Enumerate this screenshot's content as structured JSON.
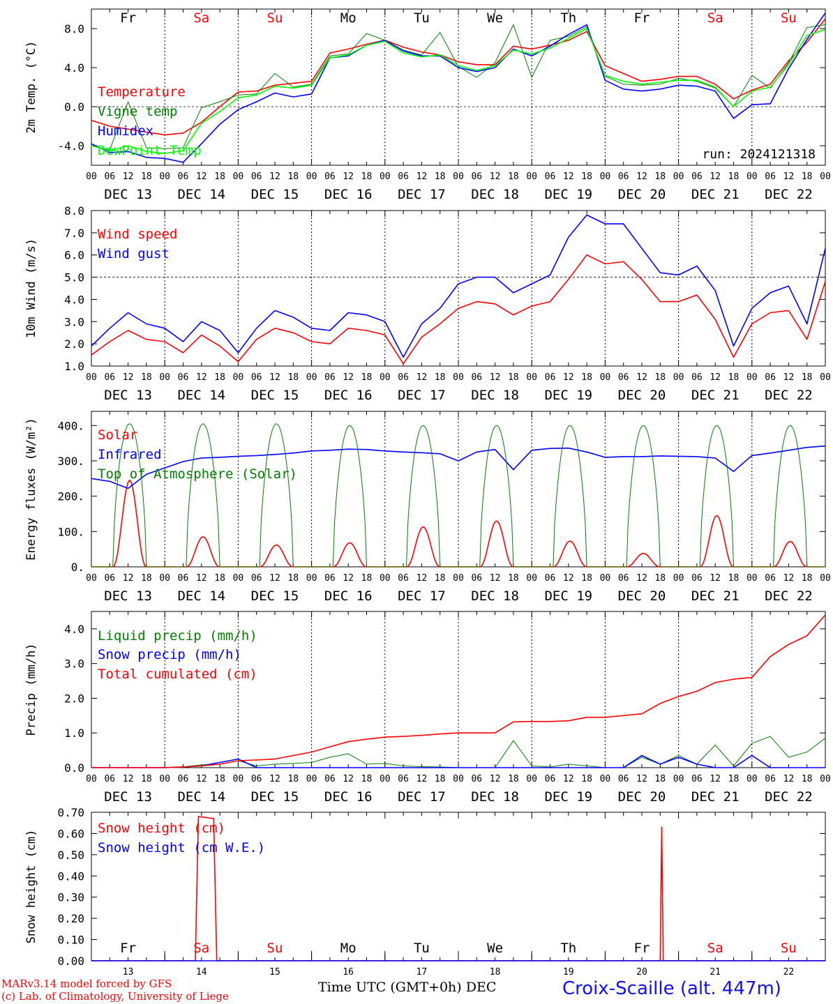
{
  "colors": {
    "red": "#ff0000",
    "green": "#008000",
    "blue": "#0000ff",
    "lime": "#00ff00",
    "station": "#1010ff"
  },
  "time_axis": {
    "hour_ticks": [
      "00",
      "06",
      "12",
      "18"
    ],
    "end_tick": "00",
    "dates": [
      "DEC 13",
      "DEC 14",
      "DEC 15",
      "DEC 16",
      "DEC 17",
      "DEC 18",
      "DEC 19",
      "DEC 20",
      "DEC 21",
      "DEC 22"
    ],
    "weekdays": [
      "Fr",
      "Sa",
      "Su",
      "Mo",
      "Tu",
      "We",
      "Th",
      "Fr",
      "Sa",
      "Su"
    ],
    "weekend": [
      false,
      true,
      true,
      false,
      false,
      false,
      false,
      false,
      true,
      true
    ],
    "day_numbers": [
      "13",
      "14",
      "15",
      "16",
      "17",
      "18",
      "19",
      "20",
      "21",
      "22"
    ]
  },
  "footer": {
    "credit_line1": "MARv3.14 model forced by GFS",
    "credit_line2": "(c) Lab. of Climatology, University of Liege",
    "xlabel": "Time UTC (GMT+0h)",
    "month": "DEC",
    "station": "Croix-Scaille (alt. 447m)"
  },
  "chart_data": [
    {
      "type": "line",
      "ylabel": "2m Temp. (°C)",
      "ylim": [
        -6.0,
        10.0
      ],
      "yticks": [
        -4.0,
        0.0,
        4.0,
        8.0
      ],
      "ytick_labels": [
        "-4.0",
        "0.0",
        "4.0",
        "8.0"
      ],
      "ref_line": 0.0,
      "annotation": "run: 2024121318",
      "x_unit": "hours since DEC 13 00 UTC",
      "series": [
        {
          "name": "Temperature",
          "color": "red",
          "x": [
            0,
            6,
            12,
            18,
            24,
            30,
            36,
            42,
            48,
            54,
            60,
            66,
            72,
            78,
            84,
            90,
            96,
            102,
            108,
            114,
            120,
            126,
            132,
            138,
            144,
            150,
            156,
            162,
            168,
            174,
            180,
            186,
            192,
            198,
            204,
            210,
            216,
            222,
            228,
            234,
            240
          ],
          "y": [
            -1.4,
            -2.0,
            -2.3,
            -2.6,
            -2.9,
            -2.7,
            -1.6,
            0.0,
            1.5,
            1.6,
            2.2,
            2.4,
            2.6,
            5.5,
            5.9,
            6.4,
            6.8,
            6.1,
            5.6,
            5.3,
            4.6,
            4.3,
            4.3,
            6.2,
            5.9,
            6.3,
            6.8,
            7.7,
            4.2,
            3.4,
            2.6,
            2.8,
            3.1,
            3.1,
            2.3,
            0.8,
            1.7,
            2.3,
            4.7,
            6.6,
            9.0
          ]
        },
        {
          "name": "Vigne temp",
          "color": "green",
          "x": [
            0,
            6,
            12,
            18,
            24,
            30,
            36,
            42,
            48,
            54,
            60,
            66,
            72,
            78,
            84,
            90,
            96,
            102,
            108,
            114,
            120,
            126,
            132,
            138,
            144,
            150,
            156,
            162,
            168,
            174,
            180,
            186,
            192,
            198,
            204,
            210,
            216,
            222,
            228,
            234,
            240
          ],
          "y": [
            -4.0,
            -4.4,
            0.5,
            -4.2,
            -4.3,
            -4.2,
            -0.1,
            0.5,
            1.2,
            1.3,
            3.4,
            2.0,
            2.3,
            5.2,
            5.4,
            7.5,
            6.8,
            5.8,
            5.3,
            7.6,
            4.1,
            3.0,
            4.5,
            8.4,
            3.0,
            6.8,
            7.2,
            8.2,
            3.1,
            2.3,
            2.2,
            2.3,
            2.9,
            2.6,
            1.9,
            0.0,
            3.2,
            1.9,
            4.5,
            8.1,
            8.4
          ]
        },
        {
          "name": "Humidex",
          "color": "blue",
          "x": [
            0,
            6,
            12,
            18,
            24,
            30,
            36,
            42,
            48,
            54,
            60,
            66,
            72,
            78,
            84,
            90,
            96,
            102,
            108,
            114,
            120,
            126,
            132,
            138,
            144,
            150,
            156,
            162,
            168,
            174,
            180,
            186,
            192,
            198,
            204,
            210,
            216,
            222,
            228,
            234,
            240
          ],
          "y": [
            -3.8,
            -4.7,
            -4.6,
            -5.2,
            -5.3,
            -5.7,
            -3.8,
            -1.8,
            -0.3,
            0.5,
            1.4,
            1.0,
            1.3,
            5.0,
            5.2,
            6.3,
            6.8,
            5.7,
            5.2,
            5.2,
            4.0,
            3.6,
            4.0,
            5.9,
            5.2,
            6.2,
            7.4,
            8.4,
            2.7,
            1.8,
            1.6,
            1.8,
            2.2,
            2.1,
            1.6,
            -1.2,
            0.2,
            0.3,
            3.9,
            6.9,
            9.6
          ]
        },
        {
          "name": "DewPoint Temp",
          "color": "lime",
          "x": [
            0,
            6,
            12,
            18,
            24,
            30,
            36,
            42,
            48,
            54,
            60,
            66,
            72,
            78,
            84,
            90,
            96,
            102,
            108,
            114,
            120,
            126,
            132,
            138,
            144,
            150,
            156,
            162,
            168,
            174,
            180,
            186,
            192,
            198,
            204,
            210,
            216,
            222,
            228,
            234,
            240
          ],
          "y": [
            -4.0,
            -4.5,
            -4.0,
            -4.6,
            -4.8,
            -4.5,
            -1.7,
            -0.5,
            0.9,
            1.2,
            2.1,
            1.9,
            2.2,
            5.0,
            5.3,
            6.3,
            6.7,
            5.5,
            5.1,
            5.3,
            4.2,
            3.7,
            4.2,
            5.8,
            5.4,
            6.0,
            7.0,
            8.0,
            3.2,
            2.6,
            2.3,
            2.5,
            2.7,
            2.7,
            2.0,
            0.0,
            1.6,
            2.0,
            4.3,
            7.3,
            7.9
          ]
        }
      ]
    },
    {
      "type": "line",
      "ylabel": "10m Wind (m/s)",
      "ylim": [
        1.0,
        8.0
      ],
      "yticks": [
        1.0,
        2.0,
        3.0,
        4.0,
        5.0,
        6.0,
        7.0,
        8.0
      ],
      "ytick_labels": [
        "1.0",
        "2.0",
        "3.0",
        "4.0",
        "5.0",
        "6.0",
        "7.0",
        "8.0"
      ],
      "ref_line": 5.0,
      "x_unit": "hours since DEC 13 00 UTC",
      "series": [
        {
          "name": "Wind speed",
          "color": "red",
          "x": [
            0,
            6,
            12,
            18,
            24,
            30,
            36,
            42,
            48,
            54,
            60,
            66,
            72,
            78,
            84,
            90,
            96,
            102,
            108,
            114,
            120,
            126,
            132,
            138,
            144,
            150,
            156,
            162,
            168,
            174,
            180,
            186,
            192,
            198,
            204,
            210,
            216,
            222,
            228,
            234,
            240
          ],
          "y": [
            1.5,
            2.1,
            2.6,
            2.2,
            2.1,
            1.6,
            2.4,
            1.9,
            1.2,
            2.2,
            2.7,
            2.5,
            2.1,
            2.0,
            2.7,
            2.6,
            2.4,
            1.1,
            2.3,
            2.9,
            3.6,
            3.9,
            3.8,
            3.3,
            3.7,
            3.9,
            4.9,
            6.0,
            5.6,
            5.7,
            4.9,
            3.9,
            3.9,
            4.2,
            3.1,
            1.4,
            2.9,
            3.4,
            3.5,
            2.2,
            4.8
          ]
        },
        {
          "name": "Wind gust",
          "color": "blue",
          "x": [
            0,
            6,
            12,
            18,
            24,
            30,
            36,
            42,
            48,
            54,
            60,
            66,
            72,
            78,
            84,
            90,
            96,
            102,
            108,
            114,
            120,
            126,
            132,
            138,
            144,
            150,
            156,
            162,
            168,
            174,
            180,
            186,
            192,
            198,
            204,
            210,
            216,
            222,
            228,
            234,
            240
          ],
          "y": [
            1.9,
            2.7,
            3.4,
            2.9,
            2.7,
            2.1,
            3.0,
            2.6,
            1.6,
            2.7,
            3.5,
            3.2,
            2.7,
            2.6,
            3.4,
            3.3,
            3.0,
            1.4,
            2.9,
            3.6,
            4.7,
            5.0,
            5.0,
            4.3,
            4.7,
            5.1,
            6.8,
            7.8,
            7.4,
            7.4,
            6.3,
            5.2,
            5.1,
            5.5,
            4.4,
            1.9,
            3.6,
            4.3,
            4.6,
            2.9,
            6.3
          ]
        }
      ]
    },
    {
      "type": "line",
      "ylabel": "Energy fluxes (W/m²)",
      "ylim": [
        0,
        440
      ],
      "yticks": [
        0,
        100,
        200,
        300,
        400
      ],
      "ytick_labels": [
        "0.",
        "100.",
        "200.",
        "300.",
        "400."
      ],
      "x_unit": "hours since DEC 13 00 UTC",
      "series": [
        {
          "name": "Solar",
          "color": "red",
          "day_peaks": [
            245,
            85,
            62,
            68,
            113,
            130,
            73,
            38,
            145,
            72
          ]
        },
        {
          "name": "Infrared",
          "color": "blue",
          "x": [
            0,
            6,
            12,
            18,
            24,
            30,
            36,
            42,
            48,
            54,
            60,
            66,
            72,
            78,
            84,
            90,
            96,
            102,
            108,
            114,
            120,
            126,
            132,
            138,
            144,
            150,
            156,
            162,
            168,
            174,
            180,
            186,
            192,
            198,
            204,
            210,
            216,
            222,
            228,
            234,
            240
          ],
          "y": [
            250,
            242,
            222,
            262,
            280,
            298,
            308,
            310,
            313,
            315,
            318,
            322,
            328,
            330,
            333,
            332,
            328,
            325,
            323,
            320,
            300,
            325,
            332,
            275,
            330,
            335,
            336,
            325,
            310,
            312,
            312,
            314,
            313,
            312,
            308,
            270,
            315,
            322,
            330,
            338,
            342
          ]
        },
        {
          "name": "Top of Atmosphere (Solar)",
          "color": "green",
          "day_peaks": [
            405,
            405,
            405,
            400,
            400,
            400,
            400,
            400,
            400,
            400
          ]
        }
      ]
    },
    {
      "type": "line",
      "ylabel": "Precip (mm/h)",
      "ylim": [
        0.0,
        4.5
      ],
      "yticks": [
        0.0,
        1.0,
        2.0,
        3.0,
        4.0
      ],
      "ytick_labels": [
        "0.0",
        "1.0",
        "2.0",
        "3.0",
        "4.0"
      ],
      "x_unit": "hours since DEC 13 00 UTC",
      "series": [
        {
          "name": "Liquid precip (mm/h)",
          "color": "green",
          "x": [
            0,
            6,
            12,
            18,
            24,
            30,
            36,
            42,
            48,
            54,
            60,
            66,
            72,
            78,
            84,
            90,
            96,
            102,
            108,
            114,
            120,
            126,
            132,
            138,
            144,
            150,
            156,
            162,
            168,
            174,
            180,
            186,
            192,
            198,
            204,
            210,
            216,
            222,
            228,
            234,
            240
          ],
          "y": [
            0,
            0,
            0,
            0,
            0,
            0.02,
            0.08,
            0.1,
            0.2,
            0.05,
            0.1,
            0.12,
            0.15,
            0.3,
            0.4,
            0.1,
            0.12,
            0.05,
            0.03,
            0.02,
            0,
            0,
            0,
            0.78,
            0.05,
            0.02,
            0.1,
            0.05,
            0,
            0,
            0.3,
            0.1,
            0.35,
            0.1,
            0.65,
            0.05,
            0.7,
            0.9,
            0.3,
            0.45,
            0.85
          ]
        },
        {
          "name": "Snow precip (mm/h)",
          "color": "blue",
          "x": [
            0,
            6,
            12,
            18,
            24,
            30,
            36,
            42,
            48,
            54,
            60,
            66,
            72,
            78,
            84,
            90,
            96,
            102,
            108,
            114,
            120,
            126,
            132,
            138,
            144,
            150,
            156,
            162,
            168,
            174,
            180,
            186,
            192,
            198,
            204,
            210,
            216,
            222,
            228,
            234,
            240
          ],
          "y": [
            0,
            0,
            0,
            0,
            0,
            0.02,
            0.05,
            0.15,
            0.25,
            0,
            0,
            0,
            0,
            0,
            0,
            0,
            0,
            0,
            0,
            0,
            0,
            0,
            0,
            0,
            0,
            0,
            0,
            0,
            0,
            0,
            0.35,
            0.1,
            0.3,
            0.1,
            0,
            0,
            0.35,
            0,
            0,
            0,
            0
          ]
        },
        {
          "name": "Total cumulated (cm)",
          "color": "red",
          "x": [
            0,
            6,
            12,
            18,
            24,
            30,
            36,
            42,
            48,
            54,
            60,
            66,
            72,
            78,
            84,
            90,
            96,
            102,
            108,
            114,
            120,
            126,
            132,
            138,
            144,
            150,
            156,
            162,
            168,
            174,
            180,
            186,
            192,
            198,
            204,
            210,
            216,
            222,
            228,
            234,
            240
          ],
          "y": [
            0,
            0,
            0,
            0,
            0,
            0.02,
            0.05,
            0.1,
            0.2,
            0.22,
            0.25,
            0.35,
            0.45,
            0.6,
            0.75,
            0.82,
            0.88,
            0.9,
            0.93,
            0.97,
            1.0,
            1.0,
            1.0,
            1.32,
            1.33,
            1.33,
            1.35,
            1.45,
            1.45,
            1.5,
            1.55,
            1.85,
            2.05,
            2.2,
            2.45,
            2.55,
            2.6,
            3.2,
            3.55,
            3.8,
            4.4
          ]
        }
      ]
    },
    {
      "type": "line",
      "ylabel": "Snow height (cm)",
      "ylim": [
        0.0,
        0.7
      ],
      "yticks": [
        0.0,
        0.1,
        0.2,
        0.3,
        0.4,
        0.5,
        0.6,
        0.7
      ],
      "ytick_labels": [
        "0.00",
        "0.10",
        "0.20",
        "0.30",
        "0.40",
        "0.50",
        "0.60",
        "0.70"
      ],
      "x_unit": "hours since DEC 13 00 UTC",
      "series": [
        {
          "name": "Snow height (cm)",
          "color": "red",
          "x": [
            0,
            34,
            35,
            40,
            41,
            48,
            76,
            76.5,
            186,
            186.5,
            187,
            188,
            240
          ],
          "y": [
            0,
            0,
            0.68,
            0.67,
            0,
            0,
            0,
            0,
            0,
            0.63,
            0,
            0,
            0
          ]
        },
        {
          "name": "Snow height (cm W.E.)",
          "color": "blue",
          "x": [
            0,
            240
          ],
          "y": [
            0,
            0
          ]
        }
      ]
    }
  ]
}
